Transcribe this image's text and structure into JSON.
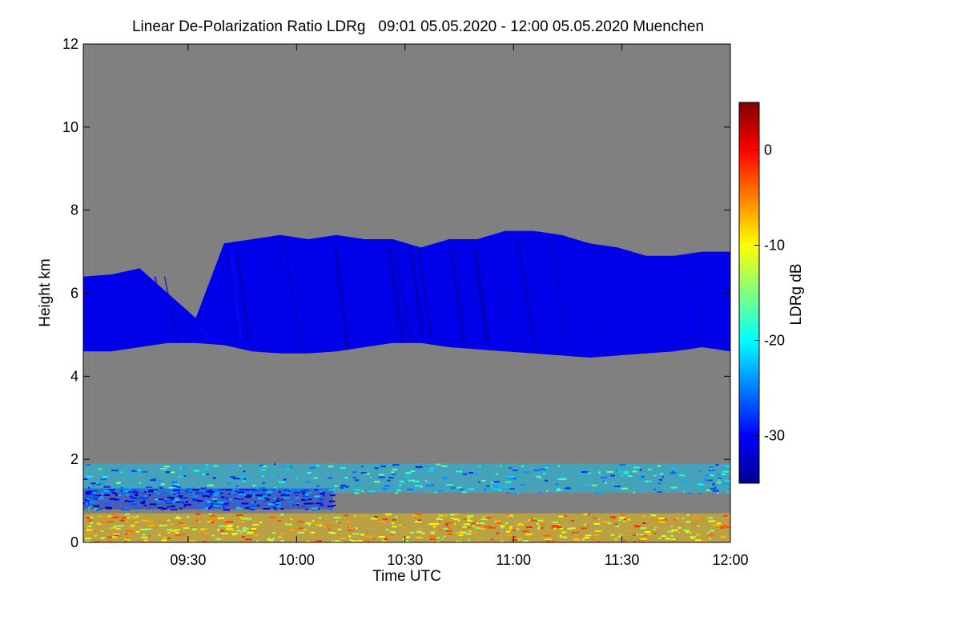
{
  "chart_data": {
    "type": "heatmap",
    "title": "Linear De-Polarization Ratio LDRg   09:01 05.05.2020 - 12:00 05.05.2020 Muenchen",
    "xlabel": "Time UTC",
    "ylabel": "Height km",
    "xlim_minutes_utc": [
      541,
      720
    ],
    "ylim": [
      0,
      12
    ],
    "x_ticks": [
      {
        "minute": 570,
        "label": "09:30"
      },
      {
        "minute": 600,
        "label": "10:00"
      },
      {
        "minute": 630,
        "label": "10:30"
      },
      {
        "minute": 660,
        "label": "11:00"
      },
      {
        "minute": 690,
        "label": "11:30"
      },
      {
        "minute": 720,
        "label": "12:00"
      }
    ],
    "y_ticks": [
      0,
      2,
      4,
      6,
      8,
      10,
      12
    ],
    "colorbar": {
      "label": "LDRg dB",
      "range": [
        -35,
        5
      ],
      "ticks": [
        0,
        -10,
        -20,
        -30
      ],
      "colormap": [
        "#00008f",
        "#0000ff",
        "#0080ff",
        "#00ffff",
        "#80ff80",
        "#ffff00",
        "#ff8000",
        "#ff0000",
        "#800000"
      ]
    },
    "background_color": "#808080",
    "layers": [
      {
        "name": "ice-cloud",
        "value_db": -31,
        "top_km": [
          6.4,
          6.45,
          6.6,
          6.0,
          5.4,
          7.2,
          7.3,
          7.4,
          7.3,
          7.4,
          7.3,
          7.3,
          7.1,
          7.3,
          7.3,
          7.5,
          7.5,
          7.4,
          7.2,
          7.1,
          6.9,
          6.9,
          7.0,
          7.0
        ],
        "base_km": [
          4.6,
          4.6,
          4.7,
          4.8,
          4.8,
          4.75,
          4.6,
          4.55,
          4.55,
          4.6,
          4.7,
          4.8,
          4.8,
          4.7,
          4.65,
          4.6,
          4.55,
          4.5,
          4.45,
          4.5,
          4.55,
          4.6,
          4.7,
          4.6
        ]
      },
      {
        "name": "aerosol-layer-1.5km",
        "value_db": -22,
        "height_km": [
          1.2,
          1.9
        ]
      },
      {
        "name": "boundary-layer-aerosol",
        "value_db": -28,
        "height_km": [
          0.8,
          1.3
        ],
        "end_minute": 610
      },
      {
        "name": "surface-layer",
        "value_db": -8,
        "height_km": [
          0.0,
          0.7
        ]
      }
    ]
  }
}
